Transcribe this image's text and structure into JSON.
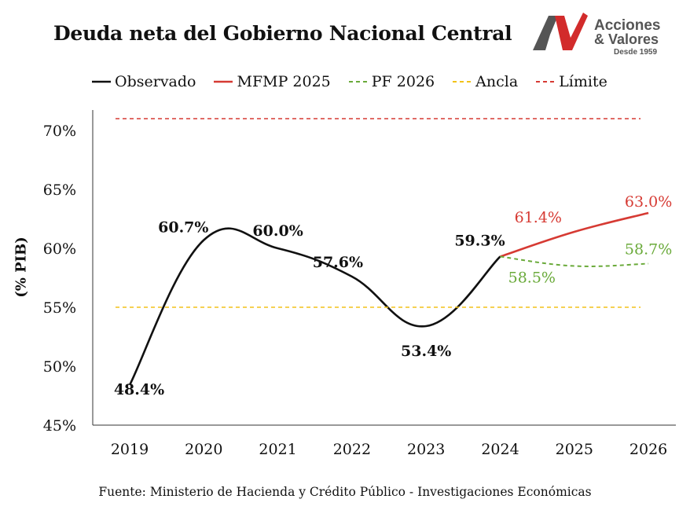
{
  "header": {
    "title": "Deuda neta del Gobierno Nacional Central"
  },
  "logo": {
    "mark": "AV",
    "line1": "Acciones",
    "line2": "& Valores",
    "line3": "Desde 1959",
    "colors": {
      "gray": "#555555",
      "red": "#d22b2b"
    }
  },
  "footer": {
    "source": "Fuente: Ministerio de Hacienda y Crédito Público - Investigaciones Económicas"
  },
  "chart_data": {
    "type": "line",
    "ylabel": "(% PIB)",
    "xlabel": "",
    "categories": [
      "2019",
      "2020",
      "2021",
      "2022",
      "2023",
      "2024",
      "2025",
      "2026"
    ],
    "yticks": [
      "45%",
      "50%",
      "55%",
      "60%",
      "65%",
      "70%"
    ],
    "ylim": [
      45,
      71
    ],
    "legend_position": "top",
    "grid": false,
    "series": [
      {
        "name": "Observado",
        "color": "#111111",
        "style": "solid",
        "values": [
          48.4,
          60.7,
          60.0,
          57.6,
          53.4,
          59.3,
          null,
          null
        ],
        "labels": [
          "48.4%",
          "60.7%",
          "60.0%",
          "57.6%",
          "53.4%",
          "59.3%",
          "",
          ""
        ]
      },
      {
        "name": "MFMP 2025",
        "color": "#d63a33",
        "style": "solid",
        "values": [
          null,
          null,
          null,
          null,
          null,
          59.3,
          61.4,
          63.0
        ],
        "labels": [
          "",
          "",
          "",
          "",
          "",
          "",
          "61.4%",
          "63.0%"
        ]
      },
      {
        "name": "PF 2026",
        "color": "#6aaa3a",
        "style": "dashed",
        "values": [
          null,
          null,
          null,
          null,
          null,
          59.3,
          58.5,
          58.7
        ],
        "labels": [
          "",
          "",
          "",
          "",
          "",
          "",
          "58.5%",
          "58.7%"
        ]
      },
      {
        "name": "Ancla",
        "color": "#f2c21a",
        "style": "dashed",
        "values": [
          55,
          55,
          55,
          55,
          55,
          55,
          55,
          55
        ],
        "labels": []
      },
      {
        "name": "Límite",
        "color": "#d63a33",
        "style": "dashed",
        "values": [
          71,
          71,
          71,
          71,
          71,
          71,
          71,
          71
        ],
        "labels": []
      }
    ]
  }
}
